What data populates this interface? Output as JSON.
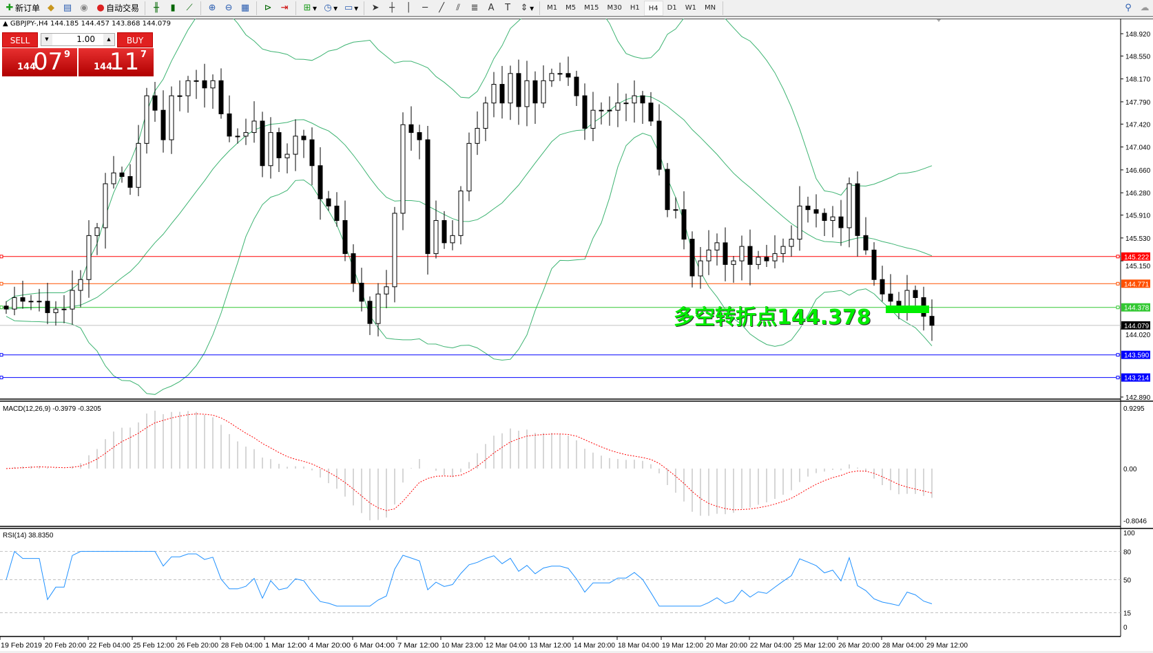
{
  "toolbar": {
    "new_order": "新订单",
    "auto_trading": "自动交易",
    "timeframes": [
      "M1",
      "M5",
      "M15",
      "M30",
      "H1",
      "H4",
      "D1",
      "W1",
      "MN"
    ],
    "selected_timeframe": "H4"
  },
  "chart_header": "GBPJPY-,H4  144.185 144.457 143.868 144.079",
  "one_click": {
    "sell": "SELL",
    "buy": "BUY",
    "lot": "1.00",
    "bid_big": "144",
    "bid_main": "07",
    "bid_pip": "9",
    "ask_big": "144",
    "ask_main": "11",
    "ask_pip": "7"
  },
  "annotation": "多空转折点144.378",
  "colors": {
    "bull": "#ffffff",
    "bear": "#000000",
    "bands": "#3cb371",
    "annotation": "#00ee00",
    "macd_hist": "#c0c0c0",
    "macd_signal": "#ff0000",
    "rsi": "#1e90ff"
  },
  "chart_data": {
    "type": "candlestick",
    "symbol": "GBPJPY-",
    "timeframe": "H4",
    "price_ticks": [
      148.92,
      148.55,
      148.17,
      147.79,
      147.42,
      147.04,
      146.66,
      146.28,
      145.91,
      145.53,
      145.15,
      144.02,
      142.89
    ],
    "ylim": [
      142.89,
      148.92
    ],
    "closes": [
      144.35,
      144.54,
      144.48,
      144.48,
      144.48,
      144.29,
      144.35,
      144.35,
      144.66,
      144.84,
      145.57,
      145.7,
      146.43,
      146.61,
      146.55,
      146.37,
      147.1,
      147.89,
      147.65,
      147.16,
      147.89,
      147.89,
      148.14,
      148.14,
      148.02,
      148.14,
      147.59,
      147.22,
      147.22,
      147.28,
      147.47,
      146.73,
      147.28,
      146.86,
      146.92,
      147.22,
      147.16,
      146.73,
      146.18,
      146.06,
      145.82,
      145.27,
      144.78,
      144.48,
      144.11,
      144.6,
      144.72,
      145.94,
      147.41,
      147.28,
      147.16,
      145.27,
      145.82,
      145.45,
      145.57,
      146.31,
      147.1,
      147.35,
      147.77,
      148.08,
      147.77,
      148.26,
      147.71,
      148.14,
      147.77,
      148.14,
      148.26,
      148.26,
      148.2,
      147.89,
      147.35,
      147.65,
      147.65,
      147.65,
      147.77,
      147.77,
      147.89,
      147.77,
      147.47,
      146.67,
      146.0,
      146.0,
      145.51,
      144.9,
      145.15,
      145.33,
      145.45,
      145.09,
      145.15,
      145.39,
      145.09,
      145.21,
      145.15,
      145.27,
      145.39,
      145.51,
      146.06,
      146.0,
      145.94,
      145.82,
      145.88,
      145.7,
      146.43,
      145.57,
      145.33,
      144.84,
      144.6,
      144.48,
      144.35,
      144.66,
      144.54,
      144.23,
      144.08
    ],
    "hlines": [
      {
        "price": "145.222",
        "color": "#ff0000"
      },
      {
        "price": "144.771",
        "color": "#ff5000"
      },
      {
        "price": "144.378",
        "color": "#32c832"
      },
      {
        "price": "144.079",
        "color": "#000000",
        "line": "#c0c0c0"
      },
      {
        "price": "143.590",
        "color": "#0000ff"
      },
      {
        "price": "143.214",
        "color": "#0000ff"
      }
    ],
    "time_labels": [
      "19 Feb 2019",
      "20 Feb 20:00",
      "22 Feb 04:00",
      "25 Feb 12:00",
      "26 Feb 20:00",
      "28 Feb 04:00",
      "1 Mar 12:00",
      "4 Mar 20:00",
      "6 Mar 04:00",
      "7 Mar 12:00",
      "10 Mar 23:00",
      "12 Mar 04:00",
      "13 Mar 12:00",
      "14 Mar 20:00",
      "18 Mar 04:00",
      "19 Mar 12:00",
      "20 Mar 20:00",
      "22 Mar 04:00",
      "25 Mar 12:00",
      "26 Mar 20:00",
      "28 Mar 04:00",
      "29 Mar 12:00"
    ],
    "macd": {
      "label": "MACD(12,26,9) -0.3979 -0.3205",
      "ticks": [
        "0.9295",
        "0.00",
        "-0.8046"
      ],
      "ylim": [
        -0.8046,
        0.9295
      ]
    },
    "rsi": {
      "label": "RSI(14) 38.8350",
      "ticks": [
        "100",
        "80",
        "50",
        "15",
        "0"
      ],
      "levels": [
        80,
        50,
        15
      ]
    }
  }
}
